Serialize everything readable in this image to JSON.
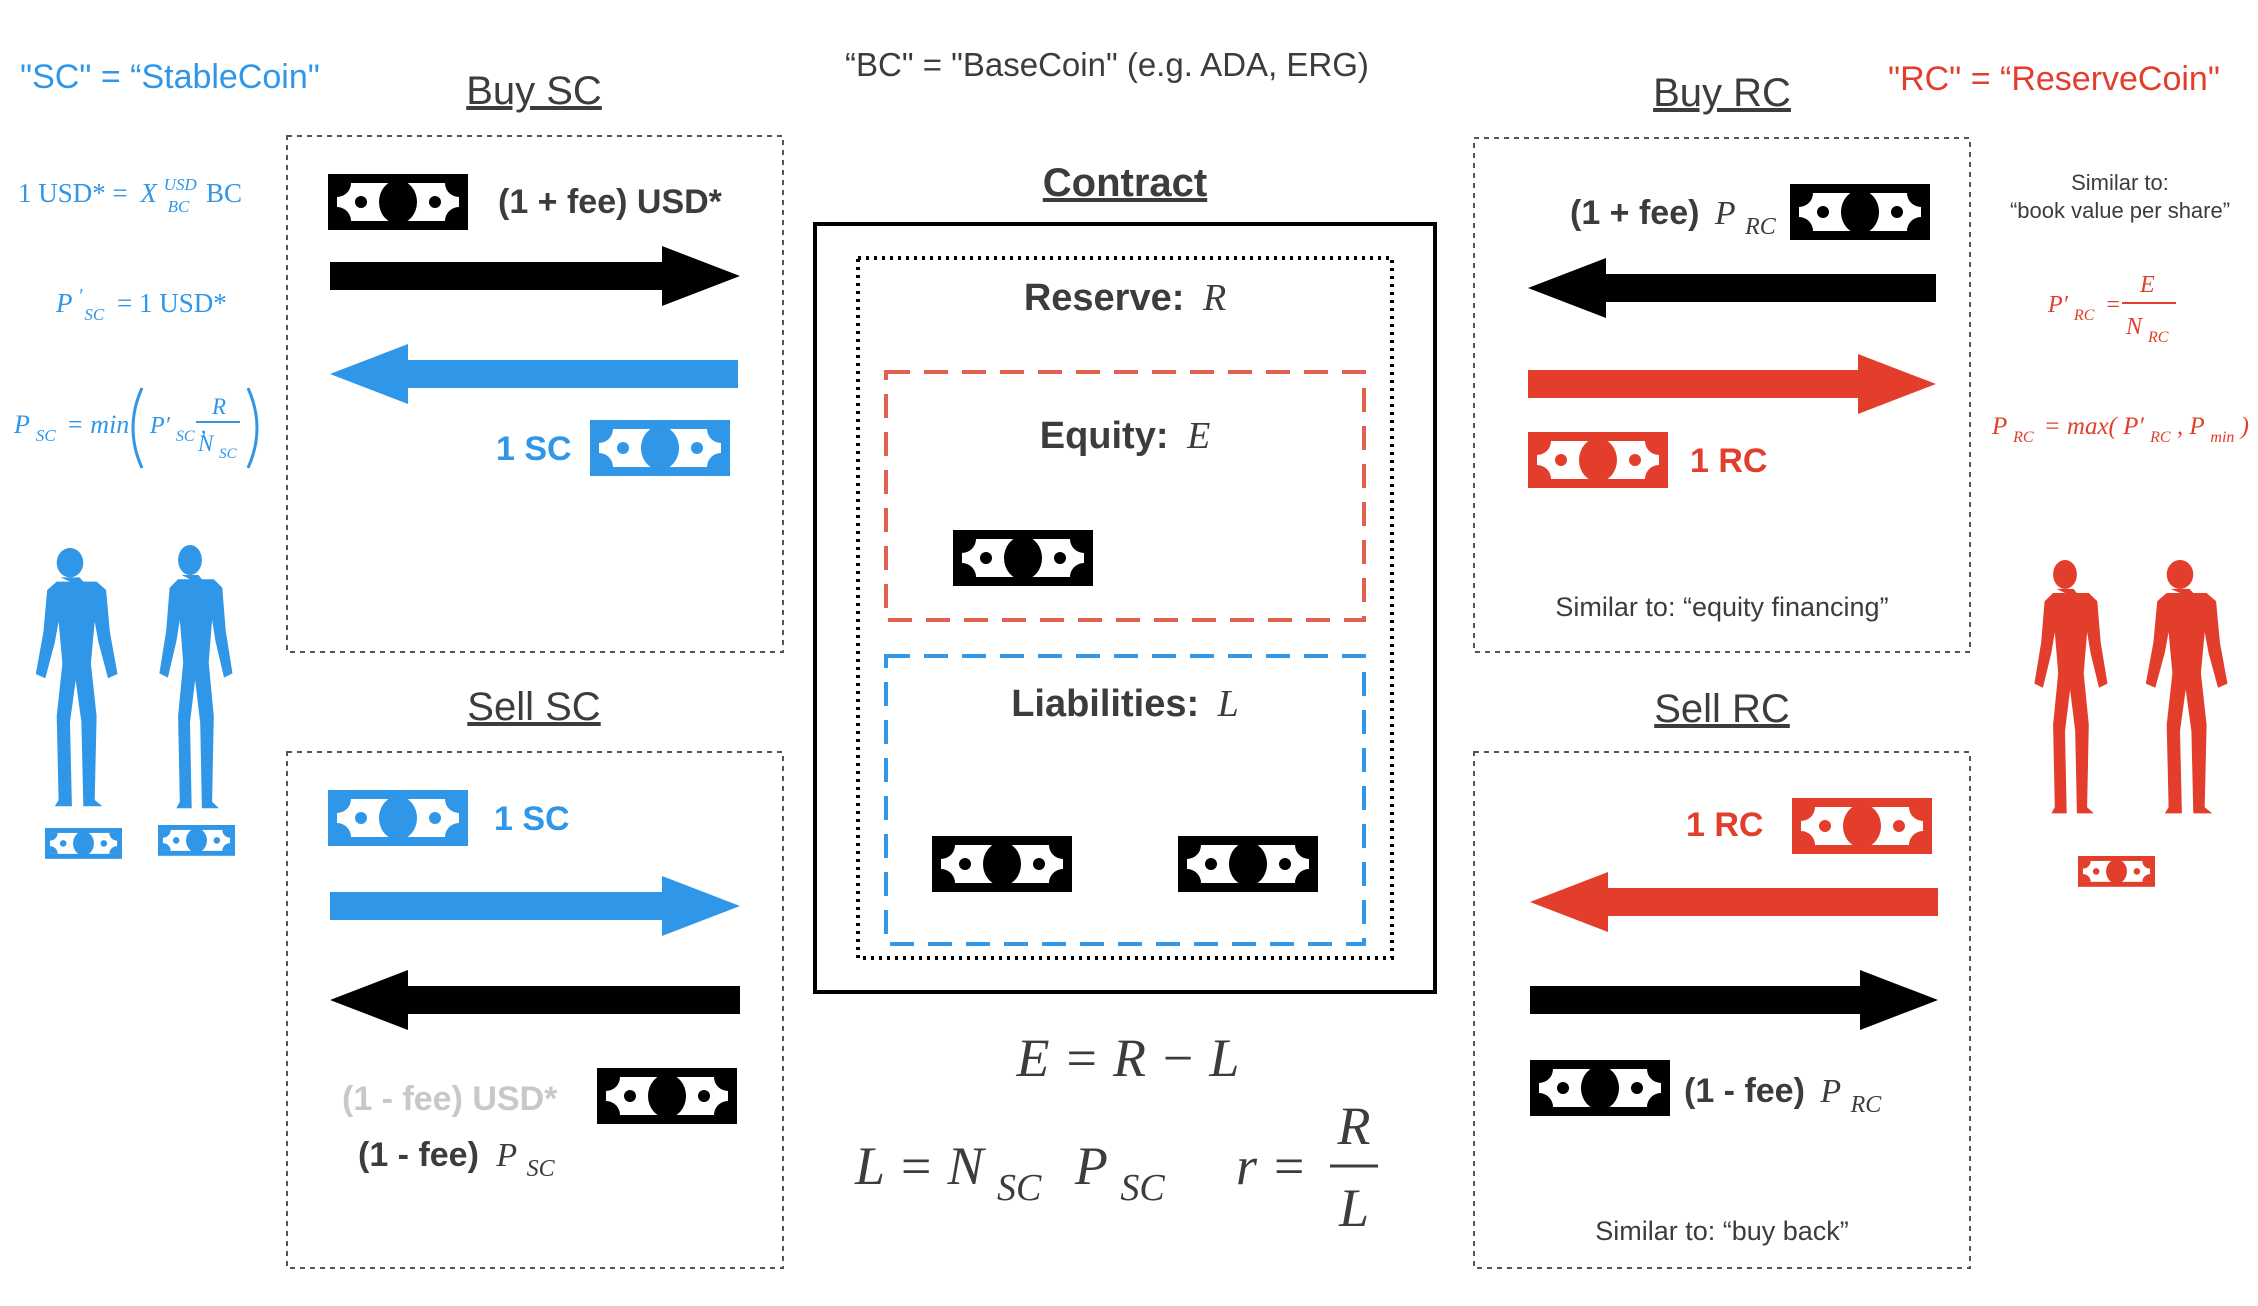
{
  "colors": {
    "stable": "#2f96e8",
    "reserve": "#e23e2b",
    "black": "#000000",
    "gray": "#c8c8c8",
    "text": "#3c3c3c"
  },
  "top": {
    "sc_def": "\"SC\" = “StableCoin\"",
    "bc_def": "“BC\" = \"BaseCoin\" (e.g. ADA, ERG)",
    "rc_def": "\"RC\" = “ReserveCoin\""
  },
  "left": {
    "rate": {
      "lhs": "1 USD* =",
      "x": "X",
      "sup": "USD",
      "sub": "BC",
      "unit": "BC"
    },
    "target": {
      "p": "P",
      "sub": "SC",
      "rhs": "= 1 USD*"
    },
    "price": {
      "p": "P",
      "sub": "SC",
      "fn": "= min",
      "prime_p": "P′",
      "prime_sub": "SC",
      "num": "R",
      "den_n": "N",
      "den_sub": "SC"
    }
  },
  "right": {
    "similar_title": "Similar to:",
    "similar_text": "“book value per share”",
    "prime": {
      "p": "P′",
      "sub": "RC",
      "num": "E",
      "den_n": "N",
      "den_sub": "RC"
    },
    "price": {
      "p": "P",
      "sub": "RC",
      "fn": "= max(",
      "prime_p": "P′",
      "prime_sub": "RC",
      "min_p": "P",
      "min_sub": "min",
      "close": ")"
    }
  },
  "panels": {
    "buy_sc": {
      "title": "Buy SC",
      "pay": "(1 + fee) USD*",
      "receive": "1 SC"
    },
    "sell_sc": {
      "title": "Sell SC",
      "give": "1 SC",
      "receive_gray": "(1 - fee) USD*",
      "receive": "(1 - fee)",
      "p": "P",
      "sub": "SC"
    },
    "buy_rc": {
      "title": "Buy RC",
      "pay": "(1 + fee)",
      "p": "P",
      "sub": "RC",
      "receive": "1 RC",
      "note": "Similar to: “equity financing”"
    },
    "sell_rc": {
      "title": "Sell RC",
      "give": "1 RC",
      "receive": "(1 - fee)",
      "p": "P",
      "sub": "RC",
      "note": "Similar to: “buy back”"
    }
  },
  "contract": {
    "title": "Contract",
    "reserve_label": "Reserve:",
    "reserve_sym": "R",
    "equity_label": "Equity:",
    "equity_sym": "E",
    "liab_label": "Liabilities:",
    "liab_sym": "L"
  },
  "equations": {
    "eq1": "E = R − L",
    "eq2_l": "L = N",
    "eq2_sub1": "SC",
    "eq2_p": "P",
    "eq2_sub2": "SC",
    "eq3_r": "r =",
    "eq3_num": "R",
    "eq3_den": "L"
  }
}
